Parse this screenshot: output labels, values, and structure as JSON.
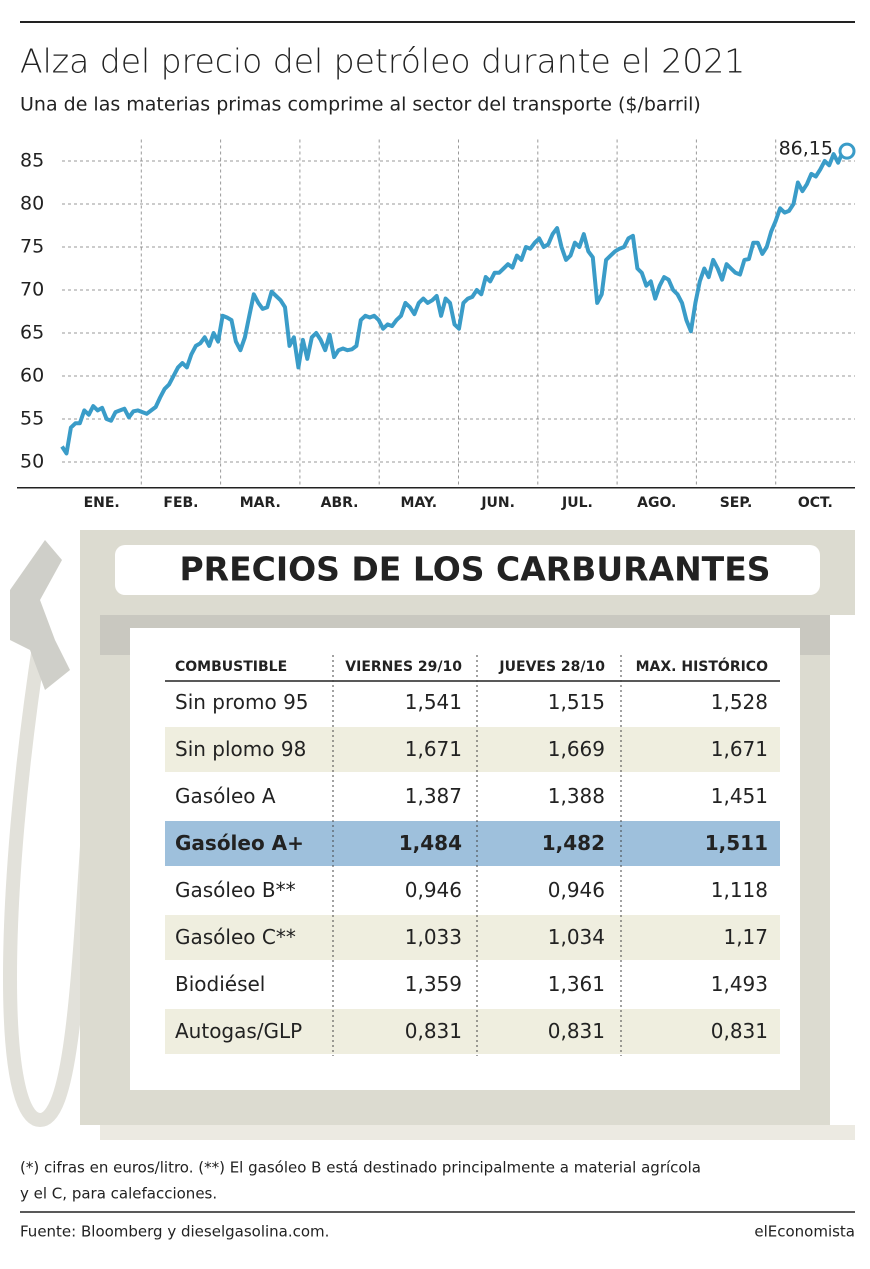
{
  "chart_data": {
    "type": "line",
    "title": "Alza del precio del petróleo durante el 2021",
    "subtitle": "Una de las materias primas comprime al sector del transporte ($/barril)",
    "x_labels": [
      "ENE.",
      "FEB.",
      "MAR.",
      "ABR.",
      "MAY.",
      "JUN.",
      "JUL.",
      "AGO.",
      "SEP.",
      "OCT."
    ],
    "values": [
      51.8,
      51,
      54,
      54.5,
      54.5,
      56,
      55.5,
      56.5,
      56,
      56.3,
      55,
      54.8,
      55.8,
      56,
      56.2,
      55.2,
      55.9,
      56,
      55.8,
      55.6,
      56,
      56.4,
      57.5,
      58.5,
      59,
      60,
      61,
      61.5,
      61,
      62.5,
      63.5,
      63.8,
      64.5,
      63.5,
      65,
      64,
      67,
      66.8,
      66.5,
      64,
      63,
      64.5,
      67,
      69.5,
      68.5,
      67.8,
      68,
      69.8,
      69.3,
      68.8,
      68,
      63.5,
      64.5,
      61,
      64.2,
      62,
      64.5,
      65,
      64.2,
      63,
      64.8,
      62.2,
      63,
      63.2,
      63,
      63.1,
      63.5,
      66.5,
      67,
      66.8,
      67,
      66.5,
      65.5,
      66,
      65.8,
      66.5,
      67,
      68.5,
      68,
      67.2,
      68.5,
      69,
      68.5,
      68.8,
      69.3,
      67,
      69,
      68.5,
      66,
      65.5,
      68.5,
      69,
      69.2,
      70,
      69.5,
      71.5,
      71,
      72,
      72,
      72.5,
      73,
      72.6,
      74,
      73.5,
      75,
      74.8,
      75.5,
      76,
      75,
      75.3,
      76.5,
      77.2,
      75,
      73.5,
      74,
      75.5,
      75,
      76.5,
      74.5,
      73.8,
      68.5,
      69.5,
      73.5,
      74,
      74.5,
      74.8,
      75,
      76,
      76.3,
      72.5,
      72,
      70.5,
      71,
      69,
      70.5,
      71.5,
      71.2,
      70,
      69.5,
      68.5,
      66.5,
      65.2,
      68.5,
      71,
      72.5,
      71.5,
      73.5,
      72.5,
      71.2,
      73,
      72.5,
      72,
      71.8,
      73.5,
      73.6,
      75.5,
      75.5,
      74.2,
      75,
      76.8,
      78,
      79.5,
      79,
      79.2,
      80,
      82.5,
      81.5,
      82.3,
      83.5,
      83.2,
      84,
      85,
      84.5,
      85.8,
      84.8,
      86,
      86.15
    ],
    "color": "#3a9cc8",
    "ylim": [
      47,
      87.5
    ],
    "yticks": [
      50,
      55,
      60,
      65,
      70,
      75,
      80,
      85
    ],
    "grid": true,
    "annotation": "86,15"
  },
  "table": {
    "title": "PRECIOS DE LOS CARBURANTES",
    "columns": [
      "COMBUSTIBLE",
      "VIERNES 29/10",
      "JUEVES 28/10",
      "MAX. HISTÓRICO"
    ],
    "rows": [
      [
        "Sin promo 95",
        "1,541",
        "1,515",
        "1,528"
      ],
      [
        "Sin plomo 98",
        "1,671",
        "1,669",
        "1,671"
      ],
      [
        "Gasóleo A",
        "1,387",
        "1,388",
        "1,451"
      ],
      [
        "Gasóleo A+",
        "1,484",
        "1,482",
        "1,511"
      ],
      [
        "Gasóleo B**",
        "0,946",
        "0,946",
        "1,118"
      ],
      [
        "Gasóleo C**",
        "1,033",
        "1,034",
        "1,17"
      ],
      [
        "Biodiésel",
        "1,359",
        "1,361",
        "1,493"
      ],
      [
        "Autogas/GLP",
        "0,831",
        "0,831",
        "0,831"
      ]
    ],
    "highlight_row": 3
  },
  "footnote": [
    "(*) cifras en euros/litro. (**) El gasóleo B está destinado principalmente a material agrícola",
    "y el C, para calefacciones."
  ],
  "source": "Fuente: Bloomberg y dieselgasolina.com.",
  "brand": "elEconomista"
}
